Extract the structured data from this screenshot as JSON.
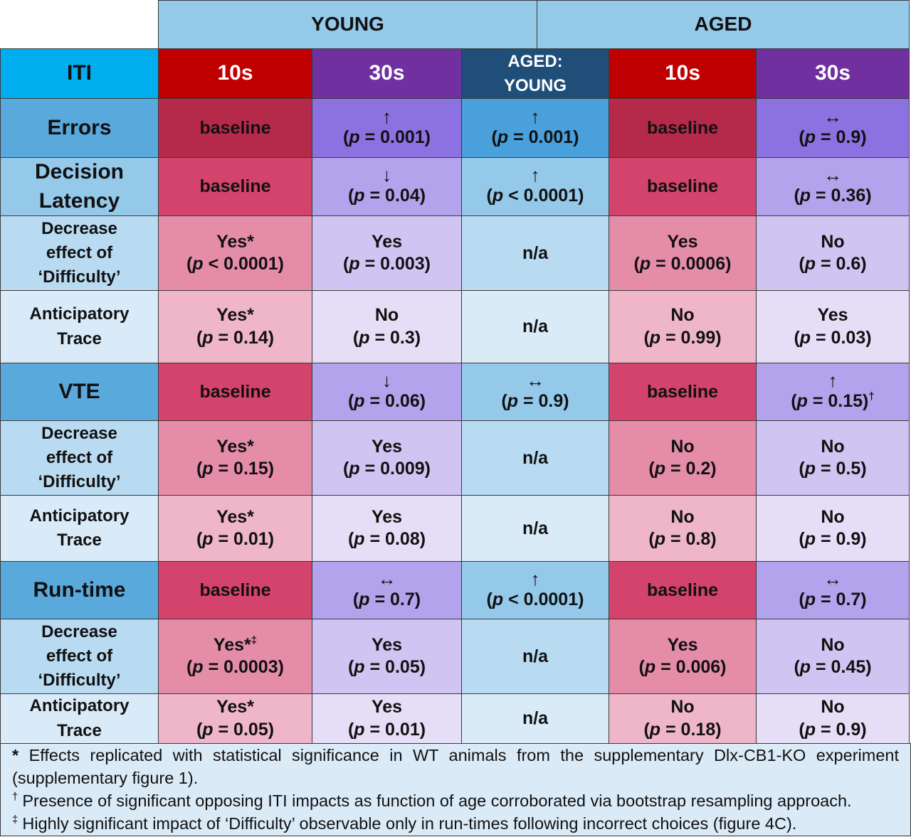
{
  "groups": {
    "young": "YOUNG",
    "aged": "AGED"
  },
  "header": {
    "iti": "ITI",
    "young_10s": "10s",
    "young_30s": "30s",
    "ratio_line1": "AGED:",
    "ratio_line2": "YOUNG",
    "aged_10s": "10s",
    "aged_30s": "30s"
  },
  "colors": {
    "group_header": "#94c9e8",
    "iti_header": "#00adef",
    "red_header": "#c00000",
    "purple_header": "#7030a0",
    "navy_header": "#1f4e79",
    "errors_baseline": "#b5294b",
    "errors_purple": "#8b72e0",
    "errors_ratio": "#49a0db",
    "notes_bg": "#daeaf7"
  },
  "rows": [
    {
      "label1": "Errors",
      "label2": "",
      "cells": [
        {
          "t1": "baseline",
          "t2": ""
        },
        {
          "t1": "↑",
          "t2": "= 0.001)"
        },
        {
          "t1": "↑",
          "t2": "= 0.001)"
        },
        {
          "t1": "baseline",
          "t2": ""
        },
        {
          "t1": "↔",
          "t2": "= 0.9)"
        }
      ]
    },
    {
      "label1": "Decision",
      "label2": "Latency",
      "cells": [
        {
          "t1": "baseline",
          "t2": ""
        },
        {
          "t1": "↓",
          "t2": "= 0.04)"
        },
        {
          "t1": "↑",
          "t2": "< 0.0001)"
        },
        {
          "t1": "baseline",
          "t2": ""
        },
        {
          "t1": "↔",
          "t2": "= 0.36)"
        }
      ]
    },
    {
      "label1": "Decrease",
      "label2": "effect of",
      "label3": "‘Difficulty’",
      "cells": [
        {
          "t1": "Yes*",
          "t2": "< 0.0001)"
        },
        {
          "t1": "Yes",
          "t2": "= 0.003)"
        },
        {
          "t1": "n/a",
          "t2": ""
        },
        {
          "t1": "Yes",
          "t2": "= 0.0006)"
        },
        {
          "t1": "No",
          "t2": "= 0.6)"
        }
      ]
    },
    {
      "label1": "Anticipatory",
      "label2": "Trace",
      "cells": [
        {
          "t1": "Yes*",
          "t2": "= 0.14)"
        },
        {
          "t1": "No",
          "t2": "= 0.3)"
        },
        {
          "t1": "n/a",
          "t2": ""
        },
        {
          "t1": "No",
          "t2": "= 0.99)"
        },
        {
          "t1": "Yes",
          "t2": "= 0.03)"
        }
      ]
    },
    {
      "label1": "VTE",
      "label2": "",
      "cells": [
        {
          "t1": "baseline",
          "t2": ""
        },
        {
          "t1": "↓",
          "t2": "= 0.06)"
        },
        {
          "t1": "↔",
          "t2": "= 0.9)"
        },
        {
          "t1": "baseline",
          "t2": ""
        },
        {
          "t1": "↑",
          "t2": "= 0.15)",
          "sup": "†"
        }
      ]
    },
    {
      "label1": "Decrease",
      "label2": "effect of",
      "label3": "‘Difficulty’",
      "cells": [
        {
          "t1": "Yes*",
          "t2": "= 0.15)"
        },
        {
          "t1": "Yes",
          "t2": "= 0.009)"
        },
        {
          "t1": "n/a",
          "t2": ""
        },
        {
          "t1": "No",
          "t2": "= 0.2)"
        },
        {
          "t1": "No",
          "t2": "= 0.5)"
        }
      ]
    },
    {
      "label1": "Anticipatory",
      "label2": "Trace",
      "cells": [
        {
          "t1": "Yes*",
          "t2": "= 0.01)"
        },
        {
          "t1": "Yes",
          "t2": "= 0.08)"
        },
        {
          "t1": "n/a",
          "t2": ""
        },
        {
          "t1": "No",
          "t2": "= 0.8)"
        },
        {
          "t1": "No",
          "t2": "= 0.9)"
        }
      ]
    },
    {
      "label1": "Run-time",
      "label2": "",
      "cells": [
        {
          "t1": "baseline",
          "t2": ""
        },
        {
          "t1": "↔",
          "t2": "= 0.7)"
        },
        {
          "t1": "↑",
          "t2": "< 0.0001)"
        },
        {
          "t1": "baseline",
          "t2": ""
        },
        {
          "t1": "↔",
          "t2": "= 0.7)"
        }
      ]
    },
    {
      "label1": "Decrease",
      "label2": "effect of",
      "label3": "‘Difficulty’",
      "cells": [
        {
          "t1": "Yes*",
          "t2": "= 0.0003)",
          "sup1": "‡"
        },
        {
          "t1": "Yes",
          "t2": "= 0.05)"
        },
        {
          "t1": "n/a",
          "t2": ""
        },
        {
          "t1": "Yes",
          "t2": "= 0.006)"
        },
        {
          "t1": "No",
          "t2": "= 0.45)"
        }
      ]
    },
    {
      "label1": "Anticipatory",
      "label2": "Trace",
      "cells": [
        {
          "t1": "Yes*",
          "t2": "= 0.05)"
        },
        {
          "t1": "Yes",
          "t2": "= 0.01)"
        },
        {
          "t1": "n/a",
          "t2": ""
        },
        {
          "t1": "No",
          "t2": "= 0.18)"
        },
        {
          "t1": "No",
          "t2": "= 0.9)"
        }
      ]
    }
  ],
  "p_open": "(",
  "p_symbol": "p",
  "notes": {
    "n1_mark": "*",
    "n1_line1": "Effects replicated with statistical significance in WT animals from the supplementary Dlx-CB1-KO experiment",
    "n1_line2": "(supplementary figure 1).",
    "n2_mark": "†",
    "n2_text": "Presence of significant opposing ITI impacts as function of age corroborated via bootstrap resampling approach.",
    "n3_mark": "‡",
    "n3_text": "Highly significant impact of ‘Difficulty’ observable only in run-times following incorrect choices (figure 4C)."
  }
}
